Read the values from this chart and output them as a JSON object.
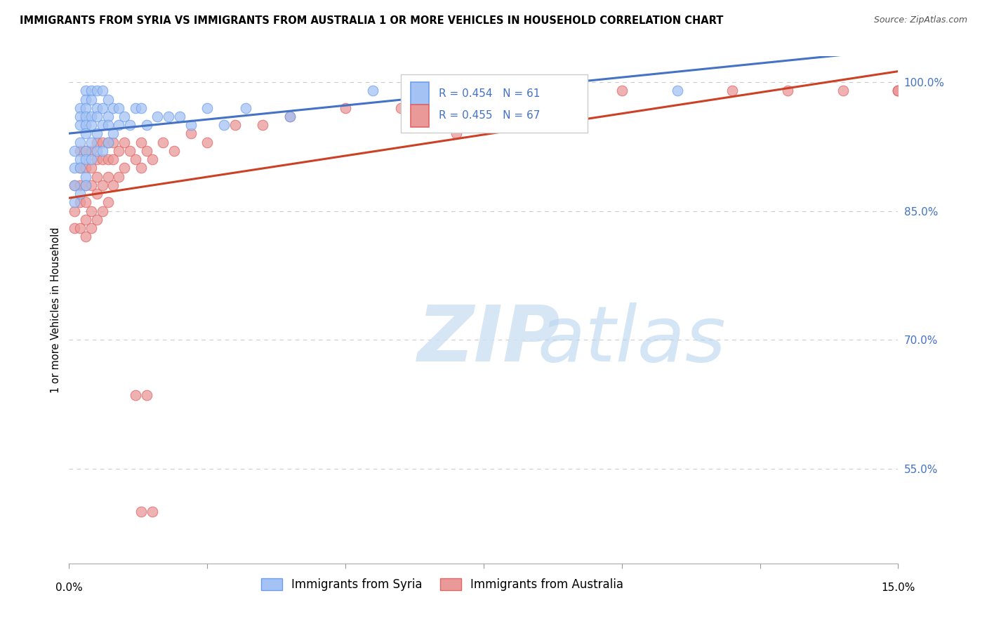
{
  "title": "IMMIGRANTS FROM SYRIA VS IMMIGRANTS FROM AUSTRALIA 1 OR MORE VEHICLES IN HOUSEHOLD CORRELATION CHART",
  "source": "Source: ZipAtlas.com",
  "ylabel": "1 or more Vehicles in Household",
  "yticks_labels": [
    "100.0%",
    "85.0%",
    "70.0%",
    "55.0%"
  ],
  "ytick_values": [
    1.0,
    0.85,
    0.7,
    0.55
  ],
  "xlim": [
    0.0,
    0.15
  ],
  "ylim": [
    0.44,
    1.03
  ],
  "legend_syria": "Immigrants from Syria",
  "legend_australia": "Immigrants from Australia",
  "R_syria": 0.454,
  "N_syria": 61,
  "R_australia": 0.455,
  "N_australia": 67,
  "color_syria_fill": "#a4c2f4",
  "color_syria_edge": "#6d9eeb",
  "color_australia_fill": "#ea9999",
  "color_australia_edge": "#e06666",
  "color_syria_line": "#4472c4",
  "color_australia_line": "#cc4125",
  "color_label_blue": "#4472c4",
  "syria_x": [
    0.001,
    0.001,
    0.001,
    0.001,
    0.002,
    0.002,
    0.002,
    0.002,
    0.002,
    0.002,
    0.002,
    0.003,
    0.003,
    0.003,
    0.003,
    0.003,
    0.003,
    0.003,
    0.003,
    0.003,
    0.003,
    0.004,
    0.004,
    0.004,
    0.004,
    0.004,
    0.004,
    0.005,
    0.005,
    0.005,
    0.005,
    0.005,
    0.006,
    0.006,
    0.006,
    0.006,
    0.007,
    0.007,
    0.007,
    0.007,
    0.008,
    0.008,
    0.009,
    0.009,
    0.01,
    0.011,
    0.012,
    0.013,
    0.014,
    0.016,
    0.018,
    0.02,
    0.022,
    0.025,
    0.028,
    0.032,
    0.04,
    0.055,
    0.07,
    0.09,
    0.11
  ],
  "syria_y": [
    0.92,
    0.9,
    0.88,
    0.86,
    0.97,
    0.96,
    0.95,
    0.93,
    0.91,
    0.9,
    0.87,
    0.99,
    0.98,
    0.97,
    0.96,
    0.95,
    0.94,
    0.92,
    0.91,
    0.89,
    0.88,
    0.99,
    0.98,
    0.96,
    0.95,
    0.93,
    0.91,
    0.99,
    0.97,
    0.96,
    0.94,
    0.92,
    0.99,
    0.97,
    0.95,
    0.92,
    0.98,
    0.96,
    0.95,
    0.93,
    0.97,
    0.94,
    0.97,
    0.95,
    0.96,
    0.95,
    0.97,
    0.97,
    0.95,
    0.96,
    0.96,
    0.96,
    0.95,
    0.97,
    0.95,
    0.97,
    0.96,
    0.99,
    0.99,
    0.99,
    0.99
  ],
  "australia_x": [
    0.001,
    0.001,
    0.001,
    0.002,
    0.002,
    0.002,
    0.002,
    0.002,
    0.003,
    0.003,
    0.003,
    0.003,
    0.003,
    0.003,
    0.004,
    0.004,
    0.004,
    0.004,
    0.004,
    0.005,
    0.005,
    0.005,
    0.005,
    0.005,
    0.006,
    0.006,
    0.006,
    0.006,
    0.007,
    0.007,
    0.007,
    0.007,
    0.008,
    0.008,
    0.008,
    0.009,
    0.009,
    0.01,
    0.01,
    0.011,
    0.012,
    0.013,
    0.013,
    0.014,
    0.015,
    0.017,
    0.019,
    0.022,
    0.025,
    0.03,
    0.035,
    0.04,
    0.05,
    0.06,
    0.07,
    0.085,
    0.1,
    0.12,
    0.13,
    0.14,
    0.15,
    0.15,
    0.15,
    0.012,
    0.013,
    0.014,
    0.015
  ],
  "australia_y": [
    0.88,
    0.85,
    0.83,
    0.92,
    0.9,
    0.88,
    0.86,
    0.83,
    0.92,
    0.9,
    0.88,
    0.86,
    0.84,
    0.82,
    0.92,
    0.9,
    0.88,
    0.85,
    0.83,
    0.93,
    0.91,
    0.89,
    0.87,
    0.84,
    0.93,
    0.91,
    0.88,
    0.85,
    0.93,
    0.91,
    0.89,
    0.86,
    0.93,
    0.91,
    0.88,
    0.92,
    0.89,
    0.93,
    0.9,
    0.92,
    0.91,
    0.93,
    0.9,
    0.92,
    0.91,
    0.93,
    0.92,
    0.94,
    0.93,
    0.95,
    0.95,
    0.96,
    0.97,
    0.97,
    0.94,
    0.99,
    0.99,
    0.99,
    0.99,
    0.99,
    0.99,
    0.99,
    0.99,
    0.636,
    0.5,
    0.636,
    0.5
  ]
}
